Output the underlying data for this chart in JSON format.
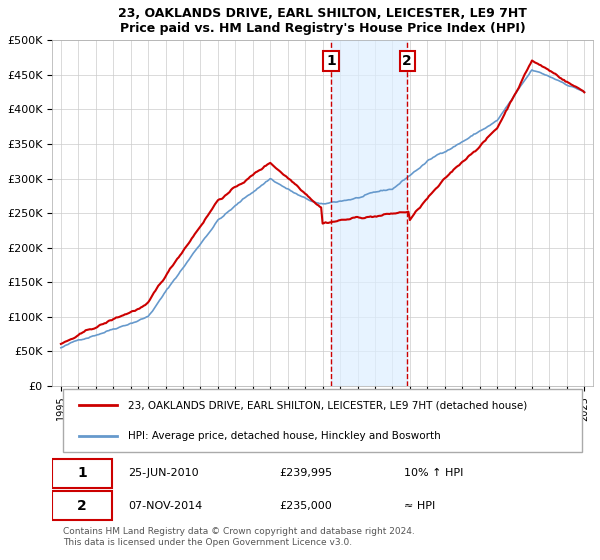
{
  "title": "23, OAKLANDS DRIVE, EARL SHILTON, LEICESTER, LE9 7HT",
  "subtitle": "Price paid vs. HM Land Registry's House Price Index (HPI)",
  "legend_line1": "23, OAKLANDS DRIVE, EARL SHILTON, LEICESTER, LE9 7HT (detached house)",
  "legend_line2": "HPI: Average price, detached house, Hinckley and Bosworth",
  "footer": "Contains HM Land Registry data © Crown copyright and database right 2024.\nThis data is licensed under the Open Government Licence v3.0.",
  "sale1_date": "25-JUN-2010",
  "sale1_price": "£239,995",
  "sale1_note": "10% ↑ HPI",
  "sale2_date": "07-NOV-2014",
  "sale2_price": "£235,000",
  "sale2_note": "≈ HPI",
  "ylim": [
    0,
    500000
  ],
  "yticks": [
    0,
    50000,
    100000,
    150000,
    200000,
    250000,
    300000,
    350000,
    400000,
    450000,
    500000
  ],
  "ytick_labels": [
    "£0",
    "£50K",
    "£100K",
    "£150K",
    "£200K",
    "£250K",
    "£300K",
    "£350K",
    "£400K",
    "£450K",
    "£500K"
  ],
  "red_color": "#cc0000",
  "blue_color": "#6699cc",
  "highlight_fill": "#ddeeff",
  "sale1_x": 2010.48,
  "sale2_x": 2014.85,
  "background_color": "#ffffff"
}
